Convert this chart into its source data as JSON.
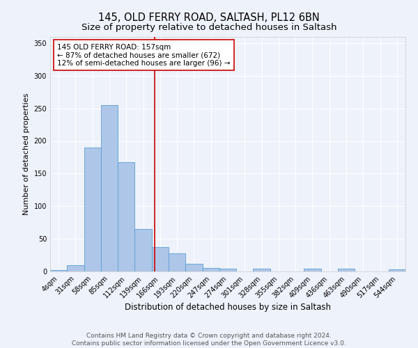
{
  "title1": "145, OLD FERRY ROAD, SALTASH, PL12 6BN",
  "title2": "Size of property relative to detached houses in Saltash",
  "xlabel": "Distribution of detached houses by size in Saltash",
  "ylabel": "Number of detached properties",
  "categories": [
    "4sqm",
    "31sqm",
    "58sqm",
    "85sqm",
    "112sqm",
    "139sqm",
    "166sqm",
    "193sqm",
    "220sqm",
    "247sqm",
    "274sqm",
    "301sqm",
    "328sqm",
    "355sqm",
    "382sqm",
    "409sqm",
    "436sqm",
    "463sqm",
    "490sqm",
    "517sqm",
    "544sqm"
  ],
  "values": [
    2,
    10,
    190,
    255,
    167,
    65,
    37,
    28,
    12,
    5,
    4,
    0,
    4,
    0,
    0,
    4,
    0,
    4,
    0,
    0,
    3
  ],
  "bar_color": "#aec6e8",
  "bar_edge_color": "#5a9fd4",
  "vline_color": "#cc0000",
  "annotation_text": "145 OLD FERRY ROAD: 157sqm\n← 87% of detached houses are smaller (672)\n12% of semi-detached houses are larger (96) →",
  "annotation_box_color": "white",
  "annotation_box_edge_color": "#cc0000",
  "ylim": [
    0,
    360
  ],
  "yticks": [
    0,
    50,
    100,
    150,
    200,
    250,
    300,
    350
  ],
  "footer_text": "Contains HM Land Registry data © Crown copyright and database right 2024.\nContains public sector information licensed under the Open Government Licence v3.0.",
  "background_color": "#eef2fa",
  "grid_color": "white",
  "title1_fontsize": 10.5,
  "title2_fontsize": 9.5,
  "xlabel_fontsize": 8.5,
  "ylabel_fontsize": 8,
  "tick_fontsize": 7,
  "footer_fontsize": 6.5,
  "annotation_fontsize": 7.5
}
